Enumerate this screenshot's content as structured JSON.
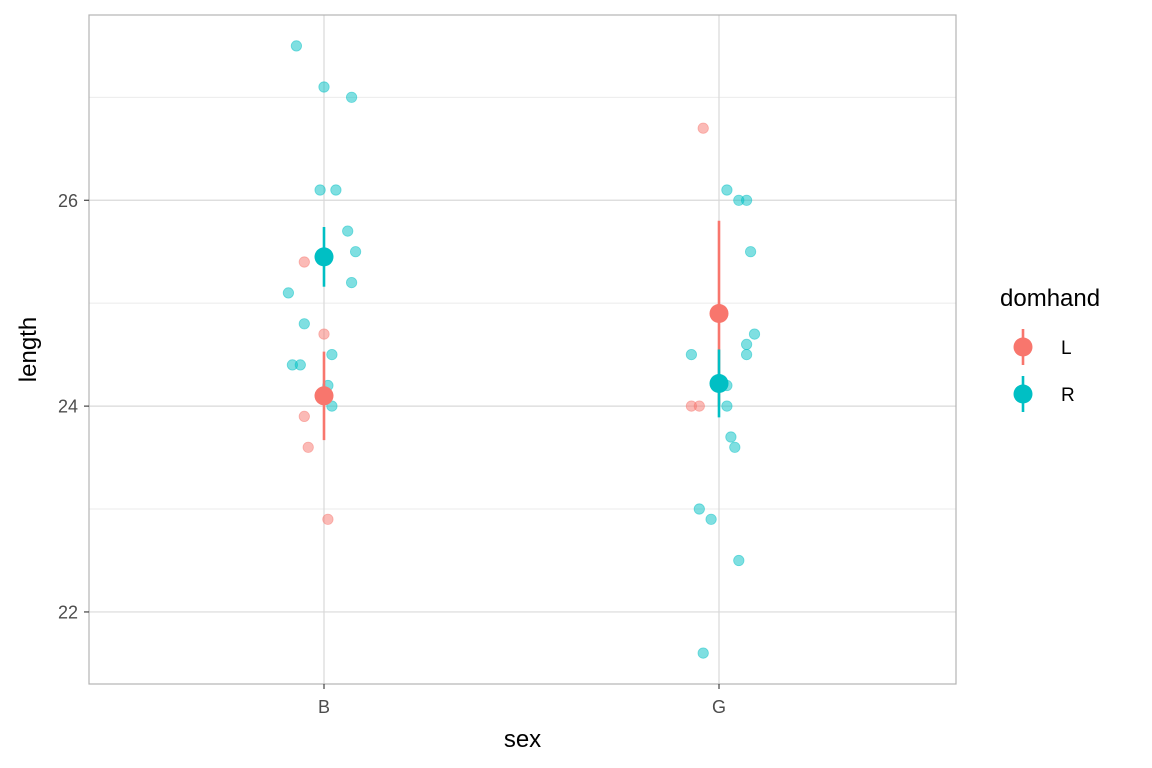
{
  "chart_data": {
    "type": "scatter",
    "xlabel": "sex",
    "ylabel": "length",
    "categories": [
      "B",
      "G"
    ],
    "ylim": [
      21.3,
      27.8
    ],
    "yticks": [
      22,
      24,
      26
    ],
    "grid": true,
    "legend": {
      "title": "domhand",
      "position": "right",
      "entries": [
        {
          "label": "L",
          "color": "#F8766D"
        },
        {
          "label": "R",
          "color": "#00BFC4"
        }
      ]
    },
    "series": [
      {
        "name": "L",
        "color": "#F8766D",
        "points": [
          {
            "x": "B",
            "jitter": -0.05,
            "y": 25.4
          },
          {
            "x": "B",
            "jitter": 0.0,
            "y": 24.7
          },
          {
            "x": "B",
            "jitter": -0.05,
            "y": 23.9
          },
          {
            "x": "B",
            "jitter": -0.04,
            "y": 23.6
          },
          {
            "x": "B",
            "jitter": 0.01,
            "y": 22.9
          },
          {
            "x": "G",
            "jitter": -0.04,
            "y": 26.7
          },
          {
            "x": "G",
            "jitter": -0.07,
            "y": 24.0
          },
          {
            "x": "G",
            "jitter": -0.05,
            "y": 24.0
          }
        ],
        "summary": [
          {
            "x": "B",
            "mean": 24.1,
            "lower": 23.67,
            "upper": 24.53
          },
          {
            "x": "G",
            "mean": 24.9,
            "lower": 24.0,
            "upper": 25.8
          }
        ]
      },
      {
        "name": "R",
        "color": "#00BFC4",
        "points": [
          {
            "x": "B",
            "jitter": -0.07,
            "y": 27.5
          },
          {
            "x": "B",
            "jitter": 0.0,
            "y": 27.1
          },
          {
            "x": "B",
            "jitter": 0.07,
            "y": 27.0
          },
          {
            "x": "B",
            "jitter": -0.01,
            "y": 26.1
          },
          {
            "x": "B",
            "jitter": 0.03,
            "y": 26.1
          },
          {
            "x": "B",
            "jitter": 0.06,
            "y": 25.7
          },
          {
            "x": "B",
            "jitter": 0.08,
            "y": 25.5
          },
          {
            "x": "B",
            "jitter": 0.07,
            "y": 25.2
          },
          {
            "x": "B",
            "jitter": -0.09,
            "y": 25.1
          },
          {
            "x": "B",
            "jitter": -0.05,
            "y": 24.8
          },
          {
            "x": "B",
            "jitter": 0.02,
            "y": 24.5
          },
          {
            "x": "B",
            "jitter": -0.08,
            "y": 24.4
          },
          {
            "x": "B",
            "jitter": -0.06,
            "y": 24.4
          },
          {
            "x": "B",
            "jitter": 0.01,
            "y": 24.2
          },
          {
            "x": "B",
            "jitter": 0.02,
            "y": 24.0
          },
          {
            "x": "G",
            "jitter": 0.02,
            "y": 26.1
          },
          {
            "x": "G",
            "jitter": 0.05,
            "y": 26.0
          },
          {
            "x": "G",
            "jitter": 0.07,
            "y": 26.0
          },
          {
            "x": "G",
            "jitter": 0.08,
            "y": 25.5
          },
          {
            "x": "G",
            "jitter": 0.09,
            "y": 24.7
          },
          {
            "x": "G",
            "jitter": 0.07,
            "y": 24.6
          },
          {
            "x": "G",
            "jitter": -0.07,
            "y": 24.5
          },
          {
            "x": "G",
            "jitter": 0.07,
            "y": 24.5
          },
          {
            "x": "G",
            "jitter": 0.02,
            "y": 24.2
          },
          {
            "x": "G",
            "jitter": 0.02,
            "y": 24.0
          },
          {
            "x": "G",
            "jitter": 0.03,
            "y": 23.7
          },
          {
            "x": "G",
            "jitter": 0.04,
            "y": 23.6
          },
          {
            "x": "G",
            "jitter": -0.05,
            "y": 23.0
          },
          {
            "x": "G",
            "jitter": -0.02,
            "y": 22.9
          },
          {
            "x": "G",
            "jitter": 0.05,
            "y": 22.5
          },
          {
            "x": "G",
            "jitter": -0.04,
            "y": 21.6
          }
        ],
        "summary": [
          {
            "x": "B",
            "mean": 25.45,
            "lower": 25.16,
            "upper": 25.74
          },
          {
            "x": "G",
            "mean": 24.22,
            "lower": 23.89,
            "upper": 24.55
          }
        ]
      }
    ]
  }
}
